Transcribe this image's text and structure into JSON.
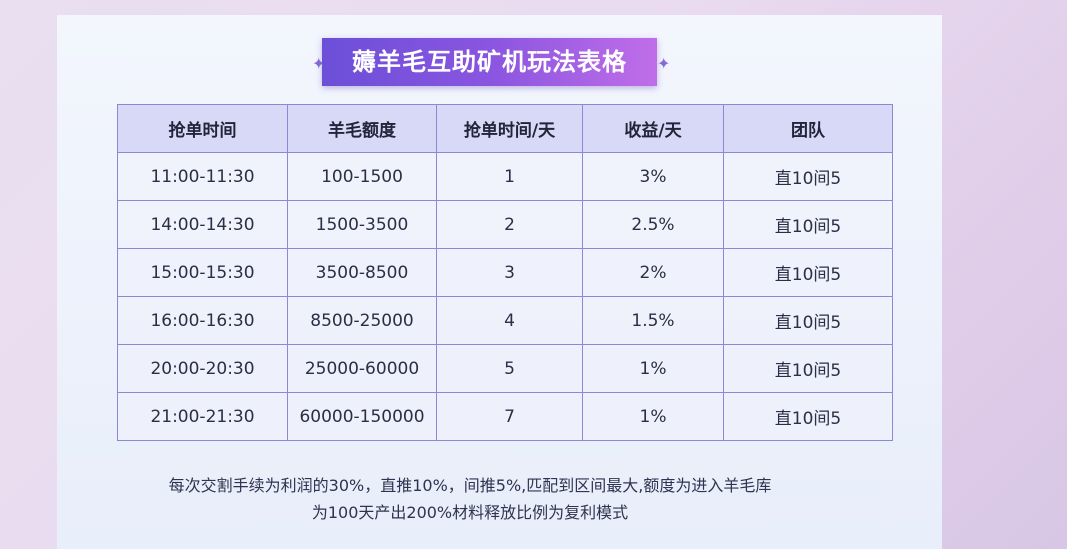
{
  "title": "薅羊毛互助矿机玩法表格",
  "table": {
    "header": [
      "抢单时间",
      "羊毛额度",
      "抢单时间/天",
      "收益/天",
      "团队"
    ],
    "rows": [
      [
        "11:00-11:30",
        "100-1500",
        "1",
        "3%",
        "直10间5"
      ],
      [
        "14:00-14:30",
        "1500-3500",
        "2",
        "2.5%",
        "直10间5"
      ],
      [
        "15:00-15:30",
        "3500-8500",
        "3",
        "2%",
        "直10间5"
      ],
      [
        "16:00-16:30",
        "8500-25000",
        "4",
        "1.5%",
        "直10间5"
      ],
      [
        "20:00-20:30",
        "25000-60000",
        "5",
        "1%",
        "直10间5"
      ],
      [
        "21:00-21:30",
        "60000-150000",
        "7",
        "1%",
        "直10间5"
      ]
    ]
  },
  "note": [
    "每次交割手续为利润的30%，直推10%，间推5%,匹配到区间最大,额度为进入羊毛库",
    "为100天产出200%材料释放比例为复利模式"
  ]
}
